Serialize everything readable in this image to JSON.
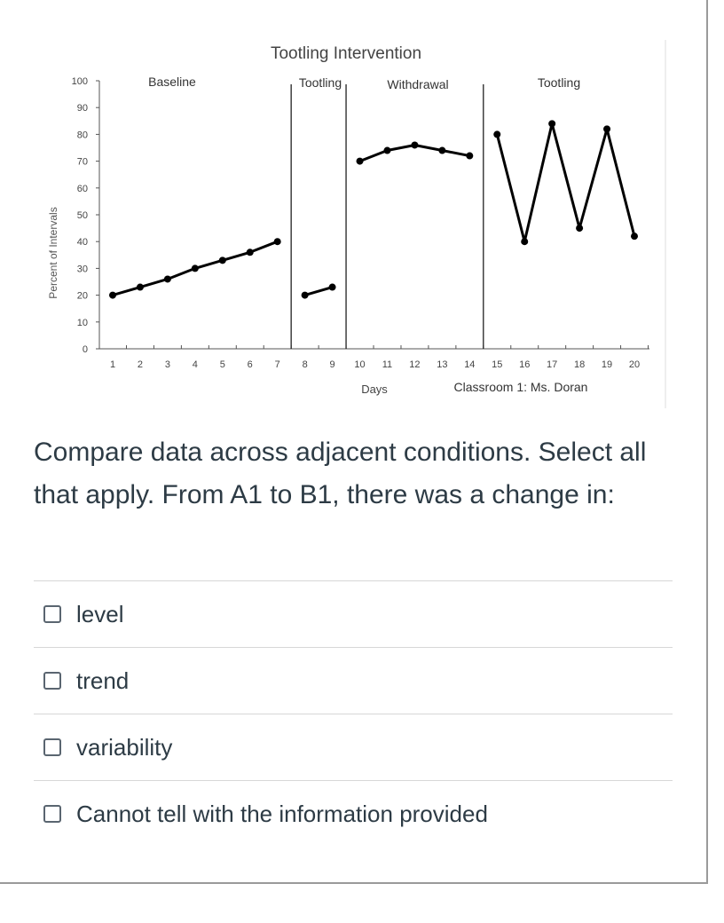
{
  "chart_data": {
    "type": "line",
    "title": "Tootling Intervention",
    "ylabel": "Percent of Intervals",
    "xlabel": "Days",
    "caption": "Classroom 1: Ms. Doran",
    "ylim": [
      0,
      100
    ],
    "xlim": [
      1,
      20
    ],
    "yticks": [
      0,
      10,
      20,
      30,
      40,
      50,
      60,
      70,
      80,
      90,
      100
    ],
    "xticks": [
      1,
      2,
      3,
      4,
      5,
      6,
      7,
      8,
      9,
      10,
      11,
      12,
      13,
      14,
      15,
      16,
      17,
      18,
      19,
      20
    ],
    "grid": false,
    "phases": [
      "Baseline",
      "Tootling",
      "Withdrawal",
      "Tootling"
    ],
    "phase_changes_after_day": [
      7,
      9,
      14
    ],
    "series": [
      {
        "phase": "Baseline",
        "x": [
          1,
          2,
          3,
          4,
          5,
          6,
          7
        ],
        "y": [
          20,
          23,
          26,
          30,
          33,
          36,
          40
        ]
      },
      {
        "phase": "Tootling",
        "x": [
          8,
          9
        ],
        "y": [
          20,
          23
        ]
      },
      {
        "phase": "Withdrawal",
        "x": [
          10,
          11,
          12,
          13,
          14
        ],
        "y": [
          70,
          74,
          76,
          74,
          72
        ]
      },
      {
        "phase": "Tootling",
        "x": [
          15,
          16,
          17,
          18,
          19,
          20
        ],
        "y": [
          80,
          40,
          84,
          45,
          82,
          42
        ]
      }
    ]
  },
  "question": {
    "text": "Compare data across adjacent conditions. Select all that apply. From A1 to B1, there was a change in:"
  },
  "answers": [
    {
      "label": "level"
    },
    {
      "label": "trend"
    },
    {
      "label": "variability"
    },
    {
      "label": "Cannot tell with the information provided"
    }
  ]
}
